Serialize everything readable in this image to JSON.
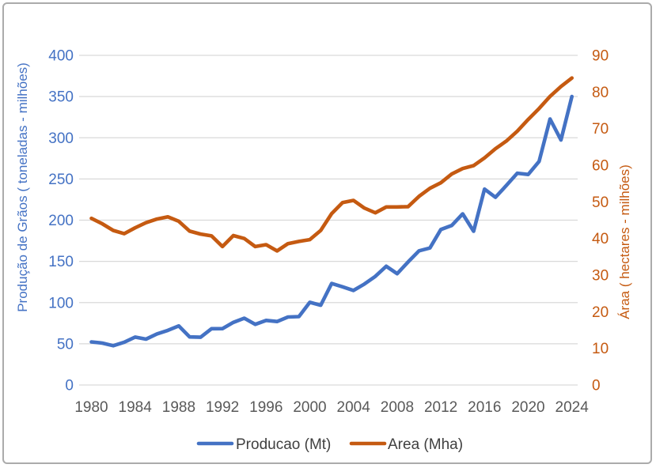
{
  "colors": {
    "producao_blue": "#4472C4",
    "area_orange": "#C55A11",
    "x_tick_gray": "#595959",
    "legend_text": "#404040",
    "gridline_gray": "#D9D9D9",
    "frame_border": "#ABABAB"
  },
  "chart_data": {
    "type": "line",
    "title": "",
    "x": [
      1980,
      1981,
      1982,
      1983,
      1984,
      1985,
      1986,
      1987,
      1988,
      1989,
      1990,
      1991,
      1992,
      1993,
      1994,
      1995,
      1996,
      1997,
      1998,
      1999,
      2000,
      2001,
      2002,
      2003,
      2004,
      2005,
      2006,
      2007,
      2008,
      2009,
      2010,
      2011,
      2012,
      2013,
      2014,
      2015,
      2016,
      2017,
      2018,
      2019,
      2020,
      2021,
      2022,
      2023,
      2024
    ],
    "x_tick_labels": [
      "1980",
      "1984",
      "1988",
      "1992",
      "1996",
      "2000",
      "2004",
      "2008",
      "2012",
      "2016",
      "2020",
      "2024"
    ],
    "left_axis": {
      "title": "Produção de Grãos ( toneladas - milhões)",
      "ticks": [
        0,
        50,
        100,
        150,
        200,
        250,
        300,
        350,
        400
      ],
      "range": [
        0,
        400
      ],
      "color": "#4472C4"
    },
    "right_axis": {
      "title": "Áraa ( hectares - milhões)",
      "ticks": [
        0,
        10,
        20,
        30,
        40,
        50,
        60,
        70,
        80,
        90
      ],
      "range": [
        0,
        90
      ],
      "color": "#C55A11"
    },
    "grid": true,
    "legend_position": "bottom",
    "series": [
      {
        "name": "Producao (Mt)",
        "axis": "left",
        "color": "#4472C4",
        "values": [
          52.3,
          50.8,
          47.7,
          51.9,
          58.1,
          55.6,
          62.0,
          66.3,
          71.7,
          58.3,
          57.9,
          68.3,
          68.4,
          76.0,
          81.1,
          73.6,
          78.4,
          77.0,
          82.5,
          83.0,
          100.3,
          96.8,
          123.2,
          119.1,
          114.7,
          122.5,
          131.8,
          144.1,
          135.1,
          149.3,
          162.8,
          166.2,
          188.7,
          193.6,
          207.7,
          186.6,
          237.7,
          227.7,
          242.1,
          257.0,
          255.4,
          271.4,
          322.8,
          297.3,
          350.0
        ]
      },
      {
        "name": "Area (Mha)",
        "axis": "right",
        "color": "#C55A11",
        "values": [
          45.5,
          44.0,
          42.2,
          41.3,
          42.9,
          44.3,
          45.3,
          45.9,
          44.7,
          42.0,
          41.2,
          40.7,
          37.8,
          40.8,
          40.0,
          37.8,
          38.3,
          36.6,
          38.6,
          39.2,
          39.7,
          42.2,
          46.8,
          49.8,
          50.4,
          48.3,
          47.0,
          48.6,
          48.6,
          48.7,
          51.5,
          53.7,
          55.2,
          57.6,
          59.1,
          59.9,
          62.0,
          64.5,
          66.6,
          69.3,
          72.5,
          75.5,
          78.8,
          81.5,
          83.8
        ]
      }
    ]
  }
}
